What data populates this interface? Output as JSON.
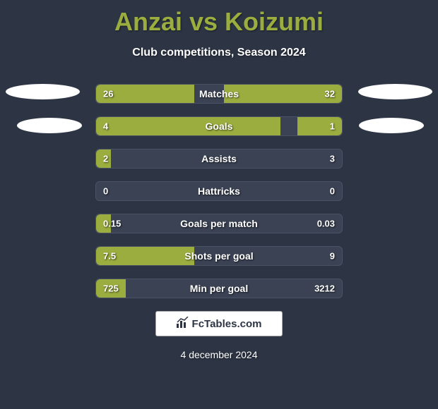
{
  "title": "Anzai vs Koizumi",
  "subtitle": "Club competitions, Season 2024",
  "date": "4 december 2024",
  "logo_text": "FcTables.com",
  "colors": {
    "background": "#2d3545",
    "accent": "#9aad3e",
    "bar_bg": "#3a4254",
    "text": "#ffffff"
  },
  "stats": [
    {
      "label": "Matches",
      "left_value": "26",
      "right_value": "32",
      "left_pct": 40,
      "right_pct": 48
    },
    {
      "label": "Goals",
      "left_value": "4",
      "right_value": "1",
      "left_pct": 75,
      "right_pct": 18
    },
    {
      "label": "Assists",
      "left_value": "2",
      "right_value": "3",
      "left_pct": 6,
      "right_pct": 0
    },
    {
      "label": "Hattricks",
      "left_value": "0",
      "right_value": "0",
      "left_pct": 0,
      "right_pct": 0
    },
    {
      "label": "Goals per match",
      "left_value": "0.15",
      "right_value": "0.03",
      "left_pct": 6,
      "right_pct": 0
    },
    {
      "label": "Shots per goal",
      "left_value": "7.5",
      "right_value": "9",
      "left_pct": 40,
      "right_pct": 0
    },
    {
      "label": "Min per goal",
      "left_value": "725",
      "right_value": "3212",
      "left_pct": 12,
      "right_pct": 0
    }
  ]
}
